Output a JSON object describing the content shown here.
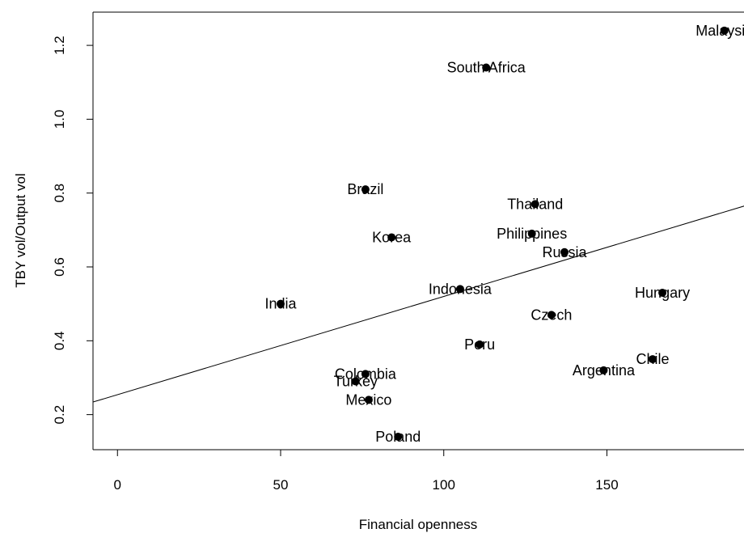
{
  "chart_data": {
    "type": "scatter",
    "xlabel": "Financial openness",
    "ylabel": "TBY vol/Output vol",
    "xlim": [
      -7.5,
      193.5
    ],
    "ylim": [
      0.105,
      1.29
    ],
    "xticks": [
      0,
      50,
      100,
      150
    ],
    "yticks": [
      0.2,
      0.4,
      0.6,
      0.8,
      1.0,
      1.2
    ],
    "xtick_labels": [
      "0",
      "50",
      "100",
      "150"
    ],
    "ytick_labels": [
      "0.2",
      "0.4",
      "0.6",
      "0.8",
      "1.0",
      "1.2"
    ],
    "grid": false,
    "points": [
      {
        "label": "Malaysia",
        "x": 186,
        "y": 1.24
      },
      {
        "label": "South Africa",
        "x": 113,
        "y": 1.14
      },
      {
        "label": "Brazil",
        "x": 76,
        "y": 0.81
      },
      {
        "label": "Thailand",
        "x": 128,
        "y": 0.77
      },
      {
        "label": "Philippines",
        "x": 127,
        "y": 0.69
      },
      {
        "label": "Korea",
        "x": 84,
        "y": 0.68
      },
      {
        "label": "Russia",
        "x": 137,
        "y": 0.64
      },
      {
        "label": "Indonesia",
        "x": 105,
        "y": 0.54
      },
      {
        "label": "Hungary",
        "x": 167,
        "y": 0.53
      },
      {
        "label": "India",
        "x": 50,
        "y": 0.5
      },
      {
        "label": "Czech",
        "x": 133,
        "y": 0.47
      },
      {
        "label": "Peru",
        "x": 111,
        "y": 0.39
      },
      {
        "label": "Chile",
        "x": 164,
        "y": 0.35
      },
      {
        "label": "Argentina",
        "x": 149,
        "y": 0.32
      },
      {
        "label": "Colombia",
        "x": 76,
        "y": 0.31
      },
      {
        "label": "Turkey",
        "x": 73,
        "y": 0.29
      },
      {
        "label": "Mexico",
        "x": 77,
        "y": 0.24
      },
      {
        "label": "Poland",
        "x": 86,
        "y": 0.14
      }
    ],
    "fit_line": {
      "intercept": 0.254,
      "slope": 0.00266
    }
  }
}
